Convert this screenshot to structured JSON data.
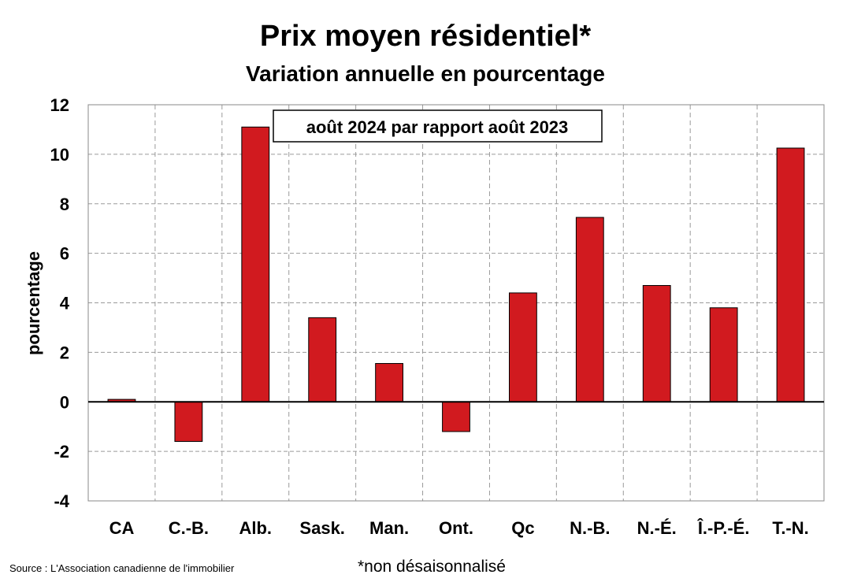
{
  "chart_data": {
    "type": "bar",
    "title": "Prix moyen résidentiel*",
    "subtitle": "Variation annuelle en pourcentage",
    "ylabel": "pourcentage",
    "xlabel": "",
    "annotation": "août 2024 par rapport août 2023",
    "categories": [
      "CA",
      "C.-B.",
      "Alb.",
      "Sask.",
      "Man.",
      "Ont.",
      "Qc",
      "N.-B.",
      "N.-É.",
      "Î.-P.-É.",
      "T.-N."
    ],
    "values": [
      0.1,
      -1.6,
      11.1,
      3.4,
      1.55,
      -1.2,
      4.4,
      7.45,
      4.7,
      3.8,
      10.25
    ],
    "ylim": [
      -4,
      12
    ],
    "yticks": [
      -4,
      -2,
      0,
      2,
      4,
      6,
      8,
      10,
      12
    ],
    "grid": true,
    "bar_color": "#d11a1f",
    "source": "Source : L'Association canadienne de l'immobilier",
    "footnote": "*non désaisonnalisé"
  }
}
